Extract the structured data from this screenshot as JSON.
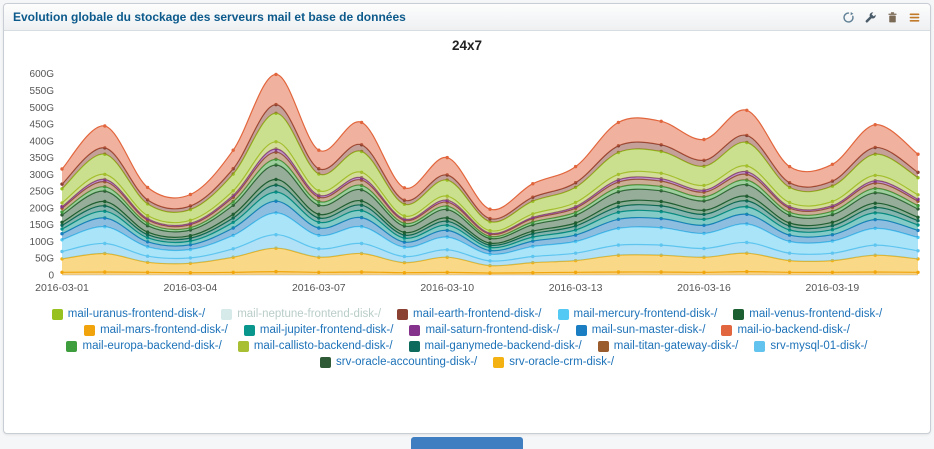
{
  "widget": {
    "title": "Evolution globale du stockage des serveurs mail et base de données",
    "toolbar": {
      "icons": [
        "refresh",
        "wrench",
        "trash",
        "menu"
      ]
    }
  },
  "colors": {
    "title_color": "#0c5a8c",
    "legend_label_color": "#1d72b8",
    "legend_disabled_color": "#b9cdc9",
    "bottom_bar_color": "#3f7fc1",
    "axis_label_color": "#555555"
  },
  "chart_data": {
    "type": "area",
    "stacked": true,
    "title": "24x7",
    "y_unit": "G",
    "ylim": [
      0,
      620
    ],
    "y_ticks": [
      0,
      50,
      100,
      150,
      200,
      250,
      300,
      350,
      400,
      450,
      500,
      550,
      600
    ],
    "x": [
      "2016-03-01",
      "2016-03-02",
      "2016-03-03",
      "2016-03-04",
      "2016-03-05",
      "2016-03-06",
      "2016-03-07",
      "2016-03-08",
      "2016-03-09",
      "2016-03-10",
      "2016-03-11",
      "2016-03-12",
      "2016-03-13",
      "2016-03-14",
      "2016-03-15",
      "2016-03-16",
      "2016-03-17",
      "2016-03-18",
      "2016-03-19",
      "2016-03-20",
      "2016-03-21"
    ],
    "x_ticks": [
      0,
      3,
      6,
      9,
      12,
      15,
      18
    ],
    "legend_rows": [
      5,
      5,
      5,
      2
    ],
    "series": [
      {
        "name": "mail-uranus-frontend-disk-/",
        "color": "#97c11f",
        "disabled": false,
        "stack": 13,
        "values": [
          42,
          60,
          35,
          32,
          50,
          85,
          50,
          62,
          35,
          48,
          27,
          38,
          45,
          65,
          65,
          57,
          70,
          45,
          46,
          63,
          51
        ]
      },
      {
        "name": "mail-neptune-frontend-disk-/",
        "color": "#d6eaea",
        "disabled": true,
        "stack": -1,
        "values": [
          0,
          0,
          0,
          0,
          0,
          0,
          0,
          0,
          0,
          0,
          0,
          0,
          0,
          0,
          0,
          0,
          0,
          0,
          0,
          0,
          0
        ]
      },
      {
        "name": "mail-earth-frontend-disk-/",
        "color": "#8b4132",
        "disabled": false,
        "stack": 14,
        "values": [
          14,
          19,
          12,
          11,
          16,
          26,
          16,
          20,
          12,
          15,
          9,
          12,
          14,
          20,
          20,
          18,
          21,
          14,
          15,
          20,
          16
        ]
      },
      {
        "name": "mail-mercury-frontend-disk-/",
        "color": "#53c9f3",
        "disabled": false,
        "stack": 3,
        "values": [
          35,
          50,
          28,
          25,
          40,
          65,
          40,
          50,
          28,
          38,
          20,
          30,
          35,
          50,
          52,
          45,
          55,
          35,
          36,
          50,
          40
        ]
      },
      {
        "name": "mail-venus-frontend-disk-/",
        "color": "#1c5f30",
        "disabled": false,
        "stack": 7,
        "values": [
          9,
          13,
          8,
          7,
          11,
          17,
          11,
          13,
          8,
          10,
          6,
          8,
          9,
          13,
          13,
          12,
          14,
          9,
          10,
          13,
          10
        ]
      },
      {
        "name": "mail-mars-frontend-disk-/",
        "color": "#f0a30a",
        "disabled": false,
        "stack": 0,
        "values": [
          8,
          9,
          8,
          7,
          8,
          10,
          8,
          9,
          7,
          8,
          6,
          7,
          8,
          9,
          9,
          8,
          10,
          8,
          8,
          9,
          8
        ]
      },
      {
        "name": "mail-jupiter-frontend-disk-/",
        "color": "#09968d",
        "disabled": false,
        "stack": 5,
        "values": [
          14,
          20,
          12,
          11,
          17,
          27,
          17,
          21,
          12,
          15,
          9,
          12,
          15,
          21,
          21,
          18,
          22,
          15,
          15,
          20,
          16
        ]
      },
      {
        "name": "mail-saturn-frontend-disk-/",
        "color": "#84328c",
        "disabled": false,
        "stack": 11,
        "values": [
          5,
          7,
          4,
          4,
          6,
          10,
          6,
          7,
          4,
          6,
          3,
          4,
          5,
          7,
          7,
          6,
          8,
          5,
          5,
          7,
          6
        ]
      },
      {
        "name": "mail-sun-master-disk-/",
        "color": "#1b7ec2",
        "disabled": false,
        "stack": 4,
        "values": [
          18,
          26,
          15,
          14,
          22,
          35,
          22,
          27,
          15,
          20,
          11,
          16,
          19,
          27,
          27,
          24,
          29,
          19,
          19,
          26,
          21
        ]
      },
      {
        "name": "mail-io-backend-disk-/",
        "color": "#e2663d",
        "disabled": false,
        "stack": 15,
        "values": [
          45,
          65,
          37,
          34,
          55,
          90,
          55,
          67,
          37,
          52,
          28,
          40,
          48,
          70,
          70,
          62,
          75,
          48,
          50,
          68,
          54
        ]
      },
      {
        "name": "mail-europa-backend-disk-/",
        "color": "#3e9e3e",
        "disabled": false,
        "stack": 9,
        "values": [
          9,
          13,
          8,
          7,
          11,
          17,
          11,
          13,
          8,
          10,
          6,
          8,
          9,
          13,
          13,
          12,
          14,
          9,
          10,
          13,
          10
        ]
      },
      {
        "name": "mail-callisto-backend-disk-/",
        "color": "#a8bf33",
        "disabled": false,
        "stack": 12,
        "values": [
          11,
          15,
          9,
          9,
          13,
          21,
          13,
          16,
          9,
          12,
          7,
          10,
          12,
          16,
          16,
          14,
          17,
          12,
          12,
          16,
          13
        ]
      },
      {
        "name": "mail-ganymede-backend-disk-/",
        "color": "#0c6b5d",
        "disabled": false,
        "stack": 6,
        "values": [
          11,
          16,
          9,
          9,
          13,
          21,
          13,
          16,
          9,
          12,
          7,
          10,
          12,
          16,
          17,
          15,
          18,
          12,
          12,
          16,
          13
        ]
      },
      {
        "name": "mail-titan-gateway-disk-/",
        "color": "#9a5b2d",
        "disabled": false,
        "stack": 10,
        "values": [
          11,
          15,
          9,
          9,
          13,
          21,
          13,
          16,
          9,
          12,
          7,
          10,
          12,
          16,
          16,
          14,
          17,
          12,
          12,
          16,
          13
        ]
      },
      {
        "name": "srv-mysql-01-disk-/",
        "color": "#62c4ee",
        "disabled": false,
        "stack": 2,
        "values": [
          22,
          30,
          18,
          16,
          25,
          40,
          25,
          30,
          18,
          22,
          14,
          18,
          22,
          30,
          30,
          26,
          32,
          22,
          22,
          30,
          24
        ]
      },
      {
        "name": "srv-oracle-accounting-disk-/",
        "color": "#2e5b36",
        "disabled": false,
        "stack": 8,
        "values": [
          22,
          31,
          19,
          17,
          27,
          43,
          27,
          33,
          19,
          25,
          14,
          19,
          23,
          32,
          32,
          28,
          34,
          23,
          23,
          31,
          25
        ]
      },
      {
        "name": "srv-oracle-crm-disk-/",
        "color": "#f3b211",
        "disabled": false,
        "stack": 1,
        "values": [
          40,
          55,
          30,
          28,
          45,
          70,
          45,
          55,
          30,
          45,
          22,
          30,
          35,
          50,
          50,
          45,
          55,
          35,
          35,
          50,
          40
        ]
      }
    ]
  }
}
